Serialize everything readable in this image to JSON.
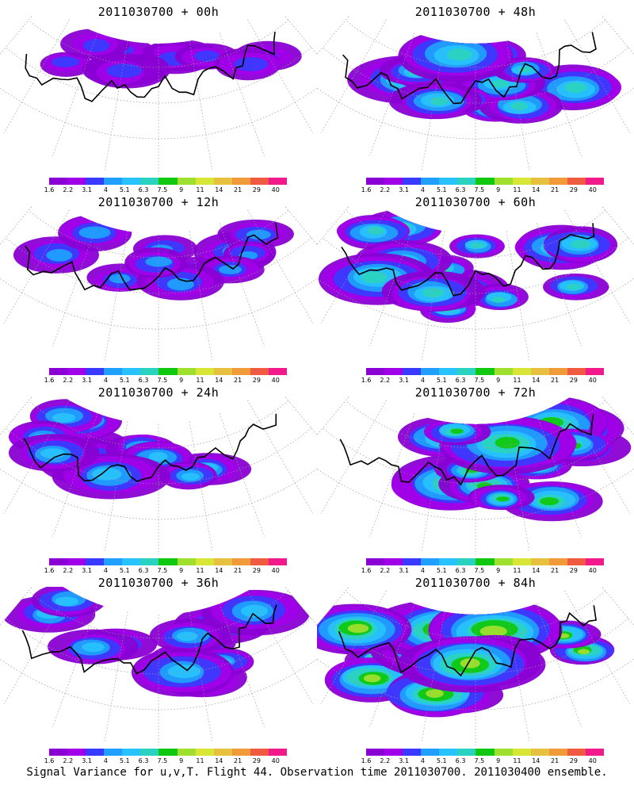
{
  "colorbar": {
    "labels": [
      "1.6",
      "2.2",
      "3.1",
      "4",
      "5.1",
      "6.3",
      "7.5",
      "9",
      "11",
      "14",
      "21",
      "29",
      "40"
    ],
    "colors": [
      "#8a00d4",
      "#a000e8",
      "#3a3aff",
      "#1f9fff",
      "#27c2ff",
      "#29d3c0",
      "#10c810",
      "#9fdf2e",
      "#d8e636",
      "#e8c040",
      "#f09a3a",
      "#f05a40",
      "#f01a8a"
    ]
  },
  "panels": [
    {
      "title": "2011030700 + 00h",
      "intensity": 0.15,
      "extent": 0.35
    },
    {
      "title": "2011030700 + 48h",
      "intensity": 0.55,
      "extent": 0.7
    },
    {
      "title": "2011030700 + 12h",
      "intensity": 0.3,
      "extent": 0.45
    },
    {
      "title": "2011030700 + 60h",
      "intensity": 0.6,
      "extent": 0.8
    },
    {
      "title": "2011030700 + 24h",
      "intensity": 0.4,
      "extent": 0.55
    },
    {
      "title": "2011030700 + 72h",
      "intensity": 0.7,
      "extent": 0.85
    },
    {
      "title": "2011030700 + 36h",
      "intensity": 0.45,
      "extent": 0.62
    },
    {
      "title": "2011030700 + 84h",
      "intensity": 0.8,
      "extent": 0.92
    }
  ],
  "footer": "Signal Variance for u,v,T. Flight 44. Observation time 2011030700. 2011030400 ensemble."
}
